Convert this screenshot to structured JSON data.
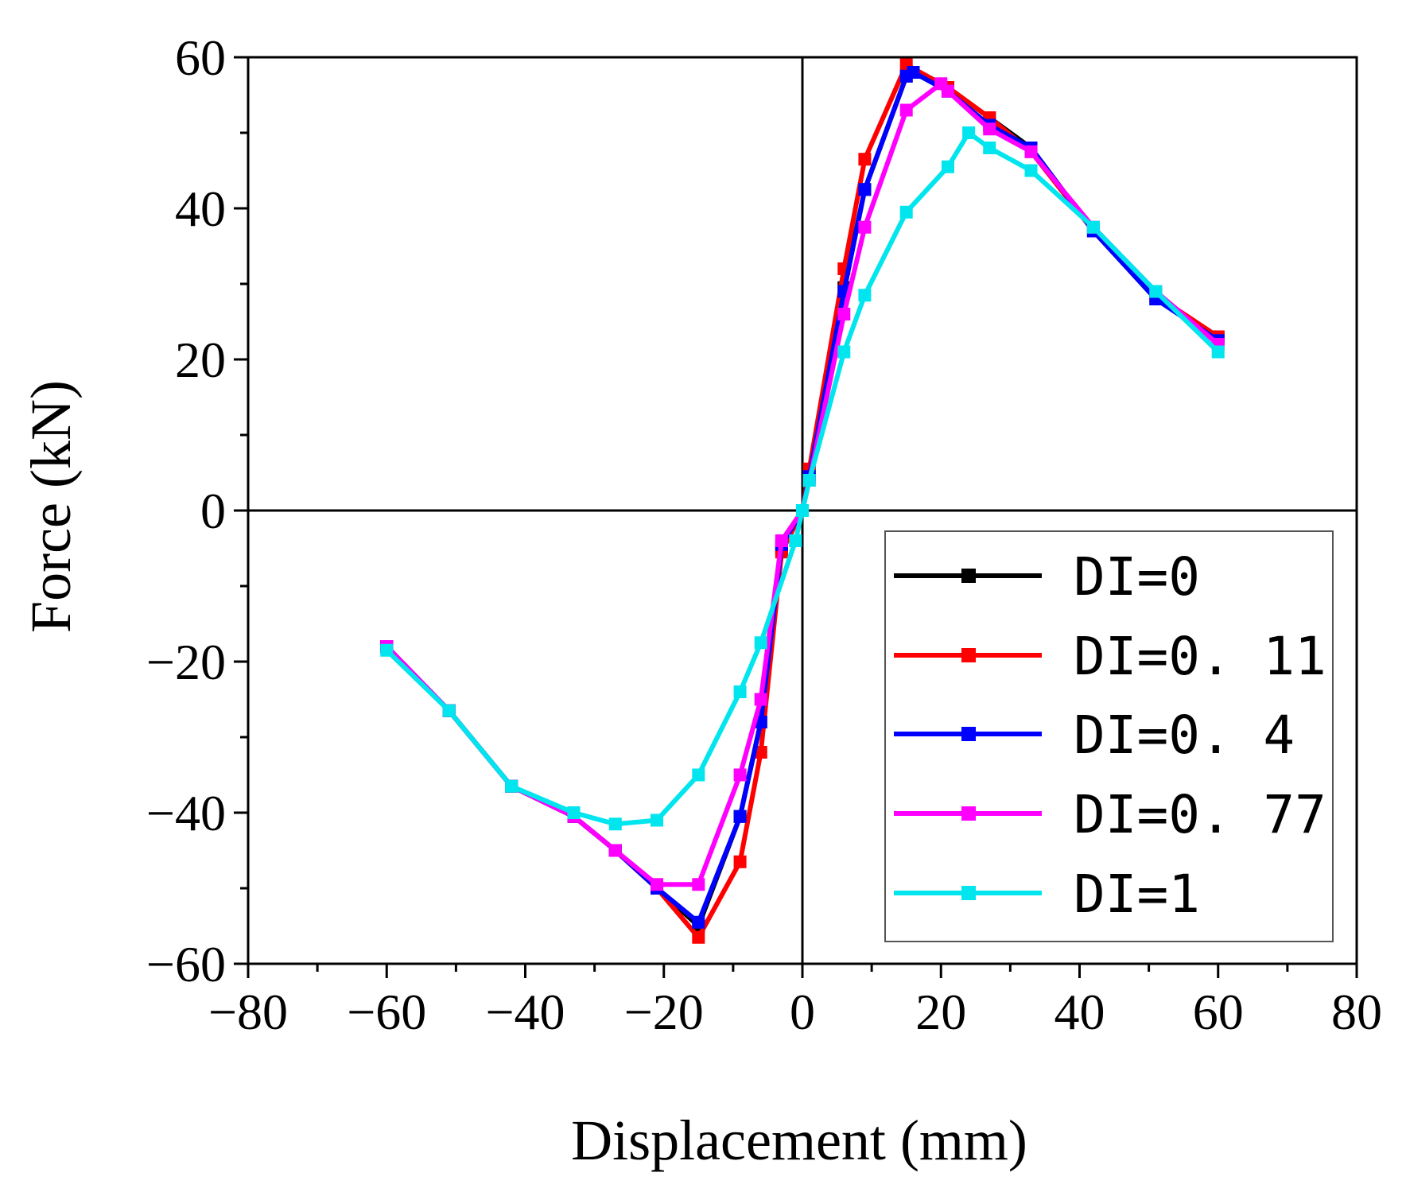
{
  "chart_data": {
    "type": "line",
    "title": "",
    "xlabel": "Displacement (mm)",
    "ylabel": "Force (kN)",
    "xlim": [
      -80,
      80
    ],
    "ylim": [
      -60,
      60
    ],
    "xticks": [
      -80,
      -60,
      -40,
      -20,
      0,
      20,
      40,
      60,
      80
    ],
    "yticks": [
      -60,
      -40,
      -20,
      0,
      20,
      40,
      60
    ],
    "x_tick_labels": [
      "−80",
      "−60",
      "−40",
      "−20",
      "0",
      "20",
      "40",
      "60",
      "80"
    ],
    "y_tick_labels": [
      "−60",
      "−40",
      "−20",
      "0",
      "20",
      "40",
      "60"
    ],
    "grid": false,
    "legend_position": "bottom-right",
    "zero_lines": true,
    "series": [
      {
        "name": "DI=0",
        "color": "#000000",
        "x": [
          -60,
          -51,
          -42,
          -33,
          -27,
          -21,
          -15,
          -9,
          -6,
          -3,
          0,
          1,
          6,
          9,
          15,
          16,
          21,
          27,
          33,
          42,
          51,
          60
        ],
        "y": [
          -18,
          -26.5,
          -36.5,
          -40.5,
          -45,
          -50,
          -55,
          -40.5,
          -28,
          -5,
          0,
          5,
          29.5,
          42.5,
          57.5,
          58,
          56,
          52,
          48,
          37,
          28,
          23
        ]
      },
      {
        "name": "DI=0. 11",
        "color": "#ff0000",
        "x": [
          -60,
          -51,
          -42,
          -33,
          -27,
          -21,
          -15,
          -9,
          -6,
          -3,
          0,
          1,
          6,
          9,
          15,
          21,
          27,
          33,
          42,
          51,
          60
        ],
        "y": [
          -18,
          -26.5,
          -36.5,
          -40.5,
          -45,
          -50,
          -56.5,
          -46.5,
          -32,
          -5.5,
          0,
          5.5,
          32,
          46.5,
          59,
          56,
          52,
          47.5,
          37,
          28.5,
          23
        ]
      },
      {
        "name": "DI=0. 4",
        "color": "#0000ff",
        "x": [
          -60,
          -51,
          -42,
          -33,
          -27,
          -21,
          -15,
          -9,
          -6,
          -3,
          0,
          1,
          6,
          9,
          15,
          16,
          21,
          27,
          33,
          42,
          51,
          60
        ],
        "y": [
          -18,
          -26.5,
          -36.5,
          -40.5,
          -45,
          -50,
          -54.5,
          -40.5,
          -28,
          -4.5,
          0,
          4.5,
          29,
          42.5,
          57.5,
          58,
          55.5,
          51,
          48,
          37,
          28,
          22.5
        ]
      },
      {
        "name": "DI=0. 77",
        "color": "#ff00ff",
        "x": [
          -60,
          -51,
          -42,
          -33,
          -27,
          -21,
          -15,
          -9,
          -6,
          -3,
          0,
          1,
          6,
          9,
          15,
          20,
          21,
          27,
          33,
          42,
          51,
          60
        ],
        "y": [
          -18,
          -26.5,
          -36.5,
          -40.5,
          -45,
          -49.5,
          -49.5,
          -35,
          -25,
          -4,
          0,
          4,
          26,
          37.5,
          53,
          56.5,
          55.5,
          50.5,
          47.5,
          37.5,
          29,
          22
        ]
      },
      {
        "name": "DI=1",
        "color": "#00e5ee",
        "x": [
          -60,
          -51,
          -42,
          -33,
          -27,
          -21,
          -15,
          -9,
          -6,
          -1,
          0,
          1,
          6,
          9,
          15,
          21,
          24,
          27,
          33,
          42,
          51,
          60
        ],
        "y": [
          -18.5,
          -26.5,
          -36.5,
          -40,
          -41.5,
          -41,
          -35,
          -24,
          -17.5,
          -4,
          0,
          4,
          21,
          28.5,
          39.5,
          45.5,
          50,
          48,
          45,
          37.5,
          29,
          21
        ]
      }
    ]
  }
}
